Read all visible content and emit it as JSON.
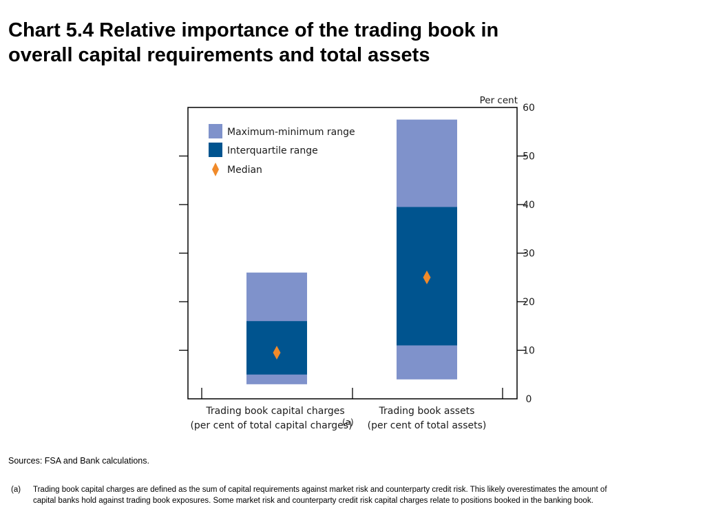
{
  "title": {
    "line1": "Chart 5.4  Relative importance of the trading book in",
    "line2": "overall capital requirements and total assets"
  },
  "chart_data": {
    "type": "bar",
    "subtype": "floating-range",
    "ylabel": "Per cent",
    "ylim": [
      0,
      60
    ],
    "yticks": [
      "0",
      "10",
      "20",
      "30",
      "40",
      "50",
      "60"
    ],
    "legend_position": "top-left",
    "legend": [
      {
        "label": "Maximum-minimum range",
        "color": "#7F92CB",
        "shape": "square"
      },
      {
        "label": "Interquartile range",
        "color": "#00548F",
        "shape": "square"
      },
      {
        "label": "Median",
        "color": "#F08A2A",
        "shape": "diamond"
      }
    ],
    "categories": [
      {
        "label_line1": "Trading book capital charges",
        "label_line2": "(per cent of total capital charges)",
        "footnote_ref": "(a)",
        "min": 3,
        "max": 26,
        "q1": 5,
        "q3": 16,
        "median": 9.5
      },
      {
        "label_line1": "Trading book assets",
        "label_line2": "(per cent of total assets)",
        "footnote_ref": "",
        "min": 4,
        "max": 57.5,
        "q1": 11,
        "q3": 39.5,
        "median": 25
      }
    ],
    "colors": {
      "range": "#7F92CB",
      "iqr": "#00548F",
      "median": "#F08A2A"
    }
  },
  "sources": "Sources:  FSA and Bank calculations.",
  "footnote": {
    "marker": "(a)",
    "text": "Trading book capital charges are defined as the sum of capital requirements against market risk and counterparty credit risk.  This likely overestimates the amount of capital banks hold against trading book exposures.  Some market risk and counterparty credit risk capital charges relate to positions booked in the banking book."
  }
}
